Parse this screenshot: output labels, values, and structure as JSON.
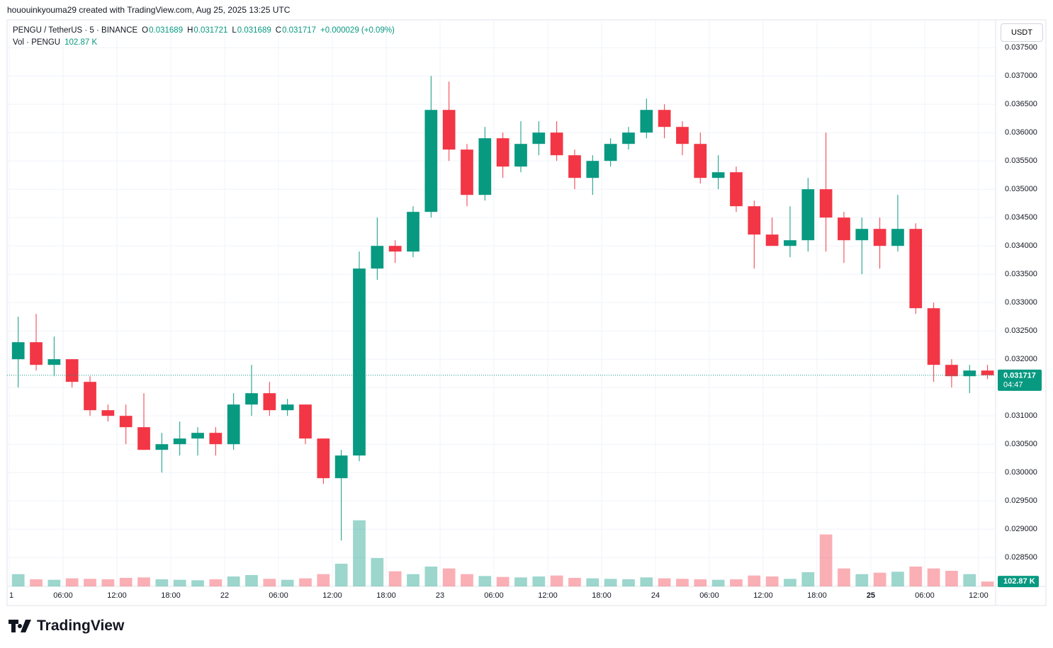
{
  "header": {
    "credit": "hououinkyouma29 created with TradingView.com, Aug 25, 2025 13:25 UTC"
  },
  "legend": {
    "symbol": "PENGU / TetherUS · 5 · BINANCE",
    "ohlc": [
      {
        "key": "O",
        "value": "0.031689"
      },
      {
        "key": "H",
        "value": "0.031721"
      },
      {
        "key": "L",
        "value": "0.031689"
      },
      {
        "key": "C",
        "value": "0.031717"
      }
    ],
    "change": "+0.000029 (+0.09%)",
    "volume_name": "Vol · PENGU",
    "volume_value": "102.87 K"
  },
  "price_axis": {
    "currency": "USDT",
    "countdown": "04:47"
  },
  "footer": {
    "brand": "TradingView"
  },
  "chart_data": {
    "type": "candlestick",
    "x": [
      0,
      2,
      4,
      6,
      8,
      10,
      12,
      14,
      16,
      18,
      20,
      22,
      24,
      26,
      28,
      30,
      32,
      34,
      36,
      38,
      40,
      42,
      44,
      46,
      48,
      50,
      52,
      54,
      56,
      58,
      60,
      62,
      64,
      66,
      68,
      70,
      72,
      74,
      76,
      78,
      80,
      82,
      84,
      86,
      88,
      90,
      92,
      94,
      96,
      98,
      100,
      102,
      104,
      106,
      108
    ],
    "open": [
      0.032,
      0.0323,
      0.0319,
      0.032,
      0.0316,
      0.0311,
      0.031,
      0.0308,
      0.0304,
      0.0305,
      0.0306,
      0.0307,
      0.0305,
      0.0312,
      0.0314,
      0.0311,
      0.0312,
      0.0306,
      0.0299,
      0.0303,
      0.0336,
      0.034,
      0.0339,
      0.0346,
      0.0364,
      0.0357,
      0.0349,
      0.0359,
      0.0354,
      0.0358,
      0.036,
      0.0356,
      0.0352,
      0.0355,
      0.0358,
      0.036,
      0.0364,
      0.0361,
      0.0358,
      0.0352,
      0.0353,
      0.0347,
      0.0342,
      0.034,
      0.0341,
      0.035,
      0.0345,
      0.0341,
      0.0343,
      0.034,
      0.0343,
      0.0329,
      0.0319,
      0.0317,
      0.0318
    ],
    "high": [
      0.03275,
      0.0328,
      0.0324,
      0.032,
      0.0317,
      0.0312,
      0.0312,
      0.0314,
      0.0307,
      0.0309,
      0.0308,
      0.0308,
      0.0314,
      0.0319,
      0.0316,
      0.0313,
      0.0312,
      0.0306,
      0.0304,
      0.0339,
      0.0345,
      0.0341,
      0.0347,
      0.037,
      0.0369,
      0.0358,
      0.0361,
      0.036,
      0.0362,
      0.0362,
      0.0362,
      0.0357,
      0.0356,
      0.0359,
      0.0361,
      0.0366,
      0.0365,
      0.0362,
      0.036,
      0.0356,
      0.0354,
      0.0348,
      0.0345,
      0.0347,
      0.0352,
      0.036,
      0.0346,
      0.0345,
      0.0345,
      0.0349,
      0.0344,
      0.033,
      0.032,
      0.0319,
      0.0319
    ],
    "low": [
      0.0315,
      0.0318,
      0.0317,
      0.0315,
      0.031,
      0.0309,
      0.0305,
      0.0304,
      0.03,
      0.0303,
      0.0303,
      0.0303,
      0.0304,
      0.031,
      0.031,
      0.031,
      0.0305,
      0.0298,
      0.0288,
      0.0302,
      0.0334,
      0.0337,
      0.0338,
      0.0345,
      0.0355,
      0.0347,
      0.0348,
      0.0352,
      0.0353,
      0.0356,
      0.0355,
      0.035,
      0.0349,
      0.0354,
      0.0357,
      0.0359,
      0.0359,
      0.0356,
      0.0351,
      0.035,
      0.0346,
      0.0336,
      0.034,
      0.0338,
      0.0339,
      0.0339,
      0.0337,
      0.0335,
      0.0336,
      0.0339,
      0.0328,
      0.0316,
      0.0315,
      0.0314,
      0.03165
    ],
    "close": [
      0.0323,
      0.0319,
      0.032,
      0.0316,
      0.0311,
      0.031,
      0.0308,
      0.0304,
      0.0305,
      0.0306,
      0.0307,
      0.0305,
      0.0312,
      0.0314,
      0.0311,
      0.0312,
      0.0306,
      0.0299,
      0.0303,
      0.0336,
      0.034,
      0.0339,
      0.0346,
      0.0364,
      0.0357,
      0.0349,
      0.0359,
      0.0354,
      0.0358,
      0.036,
      0.0356,
      0.0352,
      0.0355,
      0.0358,
      0.036,
      0.0364,
      0.0361,
      0.0358,
      0.0352,
      0.0353,
      0.0347,
      0.0342,
      0.034,
      0.0341,
      0.035,
      0.0345,
      0.0341,
      0.0343,
      0.034,
      0.0343,
      0.0329,
      0.0319,
      0.0317,
      0.0318,
      0.031717
    ],
    "volume": [
      260,
      150,
      140,
      170,
      160,
      150,
      180,
      190,
      150,
      140,
      130,
      150,
      210,
      240,
      160,
      140,
      170,
      260,
      480,
      1400,
      600,
      320,
      260,
      420,
      380,
      260,
      220,
      200,
      190,
      210,
      230,
      180,
      170,
      160,
      150,
      190,
      170,
      160,
      150,
      140,
      150,
      230,
      210,
      160,
      300,
      1100,
      380,
      260,
      290,
      310,
      420,
      380,
      330,
      260,
      102.87
    ],
    "up_color": "#089981",
    "down_color": "#f23645",
    "xlim": [
      -0.24,
      109.9
    ],
    "xticks": [
      {
        "value": 0,
        "label": "1"
      },
      {
        "value": 6,
        "label": "06:00"
      },
      {
        "value": 12,
        "label": "12:00"
      },
      {
        "value": 18,
        "label": "18:00"
      },
      {
        "value": 24,
        "label": "22"
      },
      {
        "value": 30,
        "label": "06:00"
      },
      {
        "value": 36,
        "label": "12:00"
      },
      {
        "value": 42,
        "label": "18:00"
      },
      {
        "value": 48,
        "label": "23"
      },
      {
        "value": 54,
        "label": "06:00"
      },
      {
        "value": 60,
        "label": "12:00"
      },
      {
        "value": 66,
        "label": "18:00"
      },
      {
        "value": 72,
        "label": "24"
      },
      {
        "value": 78,
        "label": "06:00"
      },
      {
        "value": 84,
        "label": "12:00"
      },
      {
        "value": 90,
        "label": "18:00"
      },
      {
        "value": 96,
        "label": "25"
      },
      {
        "value": 102,
        "label": "06:00"
      },
      {
        "value": 108,
        "label": "12:00"
      }
    ],
    "ylim": [
      0.02799,
      0.03799
    ],
    "yticks": [
      {
        "value": 0.0285,
        "label": "0.028500"
      },
      {
        "value": 0.029,
        "label": "0.029000"
      },
      {
        "value": 0.0295,
        "label": "0.029500"
      },
      {
        "value": 0.03,
        "label": "0.030000"
      },
      {
        "value": 0.0305,
        "label": "0.030500"
      },
      {
        "value": 0.031,
        "label": "0.031000"
      },
      {
        "value": 0.0315,
        "label": "0.031500"
      },
      {
        "value": 0.032,
        "label": "0.032000"
      },
      {
        "value": 0.0325,
        "label": "0.032500"
      },
      {
        "value": 0.033,
        "label": "0.033000"
      },
      {
        "value": 0.0335,
        "label": "0.033500"
      },
      {
        "value": 0.034,
        "label": "0.034000"
      },
      {
        "value": 0.0345,
        "label": "0.034500"
      },
      {
        "value": 0.035,
        "label": "0.035000"
      },
      {
        "value": 0.0355,
        "label": "0.035500"
      },
      {
        "value": 0.036,
        "label": "0.036000"
      },
      {
        "value": 0.0365,
        "label": "0.036500"
      },
      {
        "value": 0.037,
        "label": "0.037000"
      },
      {
        "value": 0.0375,
        "label": "0.037500"
      }
    ],
    "vlim": [
      0,
      1500
    ],
    "last_price": 0.031717,
    "grid": true
  }
}
